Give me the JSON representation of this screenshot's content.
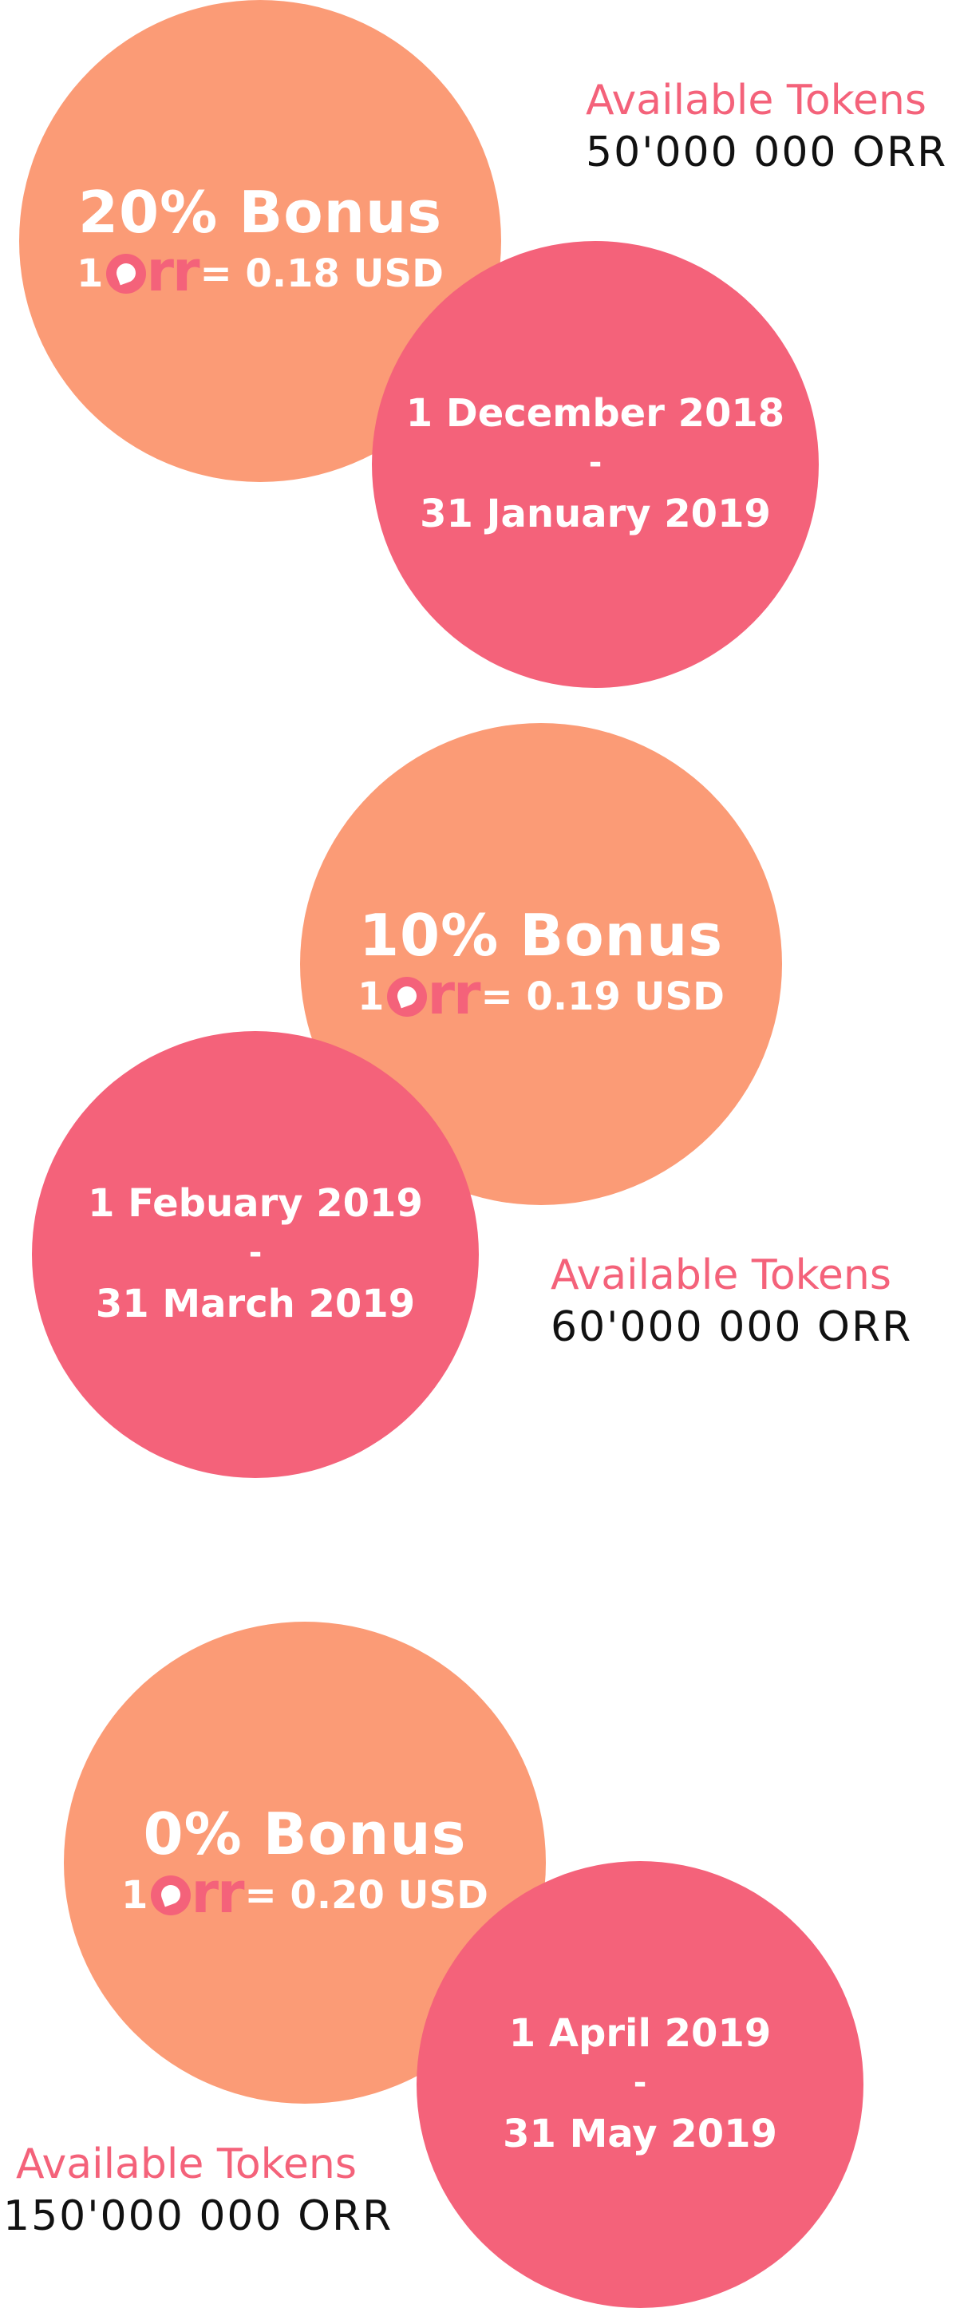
{
  "tiers": [
    {
      "bonus": "20% Bonus",
      "price_prefix": "1",
      "logo_text": "rr",
      "price_suffix": "= 0.18 USD",
      "start": "1 December 2018",
      "separator": "-",
      "end": "31 January 2019",
      "tokens_label": "Available Tokens",
      "tokens_amount": "50'000 000 ORR"
    },
    {
      "bonus": "10% Bonus",
      "price_prefix": "1",
      "logo_text": "rr",
      "price_suffix": "= 0.19 USD",
      "start": "1 Febuary 2019",
      "separator": "-",
      "end": "31 March  2019",
      "tokens_label": "Available Tokens",
      "tokens_amount": "60'000 000 ORR"
    },
    {
      "bonus": "0% Bonus",
      "price_prefix": "1",
      "logo_text": "rr",
      "price_suffix": "= 0.20 USD",
      "start": "1 April 2019",
      "separator": "-",
      "end": "31 May 2019",
      "tokens_label": "Available Tokens",
      "tokens_amount": "150'000 000 ORR"
    }
  ],
  "colors": {
    "bonus_circle": "#fb9b76",
    "date_circle": "#f4627a",
    "accent_text": "#f4627a",
    "amount_text": "#111111"
  },
  "icons": {
    "logo": "orr-logo-icon"
  }
}
